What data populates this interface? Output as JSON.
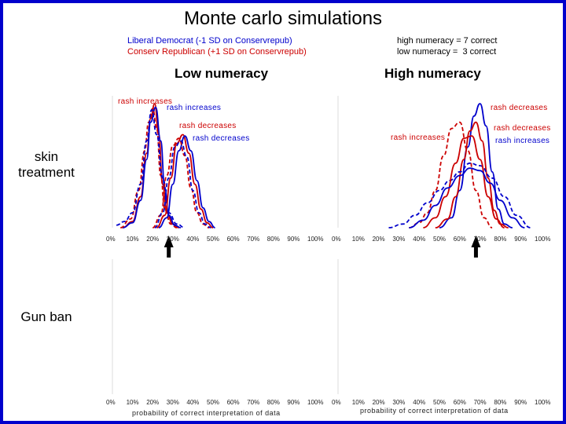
{
  "title": "Monte carlo simulations",
  "legend": {
    "line1": "Liberal Democrat (-1 SD on Conservrepub)",
    "line2": "Conserv Republican (+1 SD on Conservrepub)",
    "line1_color": "#0000cc",
    "line2_color": "#cc0000"
  },
  "numeracy_note": {
    "line1": "high numeracy = 7 correct",
    "line2": "low numeracy =  3 correct"
  },
  "column_headers": [
    "Low numeracy",
    "High numeracy"
  ],
  "row_labels": {
    "skin_line1": "skin",
    "skin_line2": "treatment",
    "gun": "Gun ban"
  },
  "xlabel": "probability of correct interpretation of data",
  "chart_data": [
    {
      "type": "line",
      "panel": "low-numeracy-skin-treatment",
      "xlim": [
        0,
        1
      ],
      "ticks": [
        "0%",
        "10%",
        "20%",
        "30%",
        "40%",
        "50%",
        "60%",
        "70%",
        "80%",
        "90%",
        "100%"
      ],
      "series": [
        {
          "color": "#cc0000",
          "style": "solid",
          "x": [
            0.05,
            0.1,
            0.14,
            0.17,
            0.19,
            0.21,
            0.23,
            0.25,
            0.27,
            0.3,
            0.33
          ],
          "y": [
            0,
            0.05,
            0.25,
            0.6,
            0.88,
            1.0,
            0.75,
            0.35,
            0.12,
            0.03,
            0
          ]
        },
        {
          "color": "#0000cc",
          "style": "solid",
          "x": [
            0.05,
            0.1,
            0.14,
            0.17,
            0.19,
            0.215,
            0.24,
            0.26,
            0.28,
            0.31,
            0.34
          ],
          "y": [
            0,
            0.04,
            0.22,
            0.55,
            0.85,
            0.97,
            0.7,
            0.32,
            0.1,
            0.02,
            0
          ]
        },
        {
          "color": "#cc0000",
          "style": "dashed",
          "x": [
            0.04,
            0.09,
            0.13,
            0.16,
            0.18,
            0.2,
            0.22,
            0.24,
            0.26,
            0.29,
            0.32
          ],
          "y": [
            0,
            0.07,
            0.3,
            0.62,
            0.85,
            0.96,
            0.8,
            0.42,
            0.15,
            0.03,
            0
          ]
        },
        {
          "color": "#0000cc",
          "style": "dashed",
          "x": [
            0.02,
            0.06,
            0.1,
            0.14,
            0.17,
            0.195,
            0.22,
            0.25,
            0.28,
            0.32,
            0.36
          ],
          "y": [
            0.02,
            0.05,
            0.12,
            0.35,
            0.7,
            0.95,
            0.75,
            0.4,
            0.12,
            0.03,
            0
          ]
        },
        {
          "color": "#cc0000",
          "style": "solid",
          "x": [
            0.22,
            0.26,
            0.29,
            0.32,
            0.35,
            0.38,
            0.41,
            0.44,
            0.47,
            0.5
          ],
          "y": [
            0,
            0.1,
            0.4,
            0.68,
            0.75,
            0.6,
            0.35,
            0.15,
            0.04,
            0
          ]
        },
        {
          "color": "#0000cc",
          "style": "solid",
          "x": [
            0.23,
            0.27,
            0.3,
            0.33,
            0.36,
            0.39,
            0.42,
            0.45,
            0.48,
            0.51
          ],
          "y": [
            0,
            0.08,
            0.35,
            0.62,
            0.74,
            0.62,
            0.38,
            0.16,
            0.05,
            0
          ]
        },
        {
          "color": "#cc0000",
          "style": "dashed",
          "x": [
            0.2,
            0.24,
            0.27,
            0.3,
            0.33,
            0.36,
            0.39,
            0.42,
            0.45,
            0.48
          ],
          "y": [
            0,
            0.1,
            0.42,
            0.66,
            0.72,
            0.58,
            0.32,
            0.12,
            0.03,
            0
          ]
        },
        {
          "color": "#0000cc",
          "style": "dashed",
          "x": [
            0.21,
            0.25,
            0.28,
            0.31,
            0.34,
            0.37,
            0.4,
            0.43,
            0.46,
            0.49
          ],
          "y": [
            0,
            0.12,
            0.4,
            0.65,
            0.7,
            0.57,
            0.3,
            0.12,
            0.03,
            0
          ]
        }
      ],
      "annotations": [
        "rash increases",
        "rash increases",
        "rash decreases",
        "rash decreases"
      ]
    },
    {
      "type": "line",
      "panel": "high-numeracy-skin-treatment",
      "xlim": [
        0,
        1
      ],
      "ticks": [
        "0%",
        "10%",
        "20%",
        "30%",
        "40%",
        "50%",
        "60%",
        "70%",
        "80%",
        "90%",
        "100%"
      ],
      "series": [
        {
          "color": "#0000cc",
          "style": "solid",
          "x": [
            0.5,
            0.56,
            0.6,
            0.64,
            0.67,
            0.7,
            0.73,
            0.76,
            0.79,
            0.82,
            0.86
          ],
          "y": [
            0,
            0.08,
            0.3,
            0.65,
            0.9,
            1.0,
            0.82,
            0.45,
            0.15,
            0.03,
            0
          ]
        },
        {
          "color": "#cc0000",
          "style": "solid",
          "x": [
            0.48,
            0.54,
            0.58,
            0.62,
            0.65,
            0.68,
            0.71,
            0.74,
            0.77,
            0.8,
            0.84
          ],
          "y": [
            0,
            0.07,
            0.25,
            0.55,
            0.78,
            0.85,
            0.7,
            0.4,
            0.14,
            0.03,
            0
          ]
        },
        {
          "color": "#cc0000",
          "style": "dashed",
          "x": [
            0.35,
            0.4,
            0.44,
            0.48,
            0.52,
            0.56,
            0.6,
            0.64,
            0.68,
            0.72,
            0.76
          ],
          "y": [
            0,
            0.04,
            0.12,
            0.3,
            0.58,
            0.8,
            0.85,
            0.62,
            0.3,
            0.08,
            0
          ]
        },
        {
          "color": "#0000cc",
          "style": "dashed",
          "x": [
            0.25,
            0.32,
            0.38,
            0.44,
            0.5,
            0.55,
            0.6,
            0.65,
            0.7,
            0.76,
            0.82,
            0.88,
            0.95
          ],
          "y": [
            0,
            0.03,
            0.1,
            0.2,
            0.3,
            0.38,
            0.45,
            0.52,
            0.5,
            0.4,
            0.25,
            0.1,
            0
          ]
        },
        {
          "color": "#cc0000",
          "style": "solid",
          "x": [
            0.42,
            0.48,
            0.53,
            0.58,
            0.62,
            0.66,
            0.7,
            0.74,
            0.78,
            0.82
          ],
          "y": [
            0,
            0.08,
            0.25,
            0.52,
            0.72,
            0.74,
            0.55,
            0.25,
            0.07,
            0
          ]
        },
        {
          "color": "#0000cc",
          "style": "solid",
          "x": [
            0.35,
            0.42,
            0.48,
            0.54,
            0.6,
            0.65,
            0.7,
            0.75,
            0.8,
            0.86,
            0.92
          ],
          "y": [
            0,
            0.06,
            0.18,
            0.32,
            0.42,
            0.48,
            0.46,
            0.36,
            0.22,
            0.08,
            0
          ]
        }
      ],
      "annotations": [
        "rash decreases",
        "rash increases",
        "rash decreases",
        "rash increases"
      ]
    },
    {
      "type": "line",
      "panel": "low-numeracy-gun-ban",
      "xlim": [
        0,
        1
      ],
      "ticks": [
        "0%",
        "10%",
        "20%",
        "30%",
        "40%",
        "50%",
        "60%",
        "70%",
        "80%",
        "90%",
        "100%"
      ],
      "series": []
    },
    {
      "type": "line",
      "panel": "high-numeracy-gun-ban",
      "xlim": [
        0,
        1
      ],
      "ticks": [
        "0%",
        "10%",
        "20%",
        "30%",
        "40%",
        "50%",
        "60%",
        "70%",
        "80%",
        "90%",
        "100%"
      ],
      "series": []
    }
  ],
  "reference_arrows": [
    {
      "panel": "low-numeracy-skin-treatment",
      "x": 0.28
    },
    {
      "panel": "high-numeracy-skin-treatment",
      "x": 0.68
    }
  ]
}
